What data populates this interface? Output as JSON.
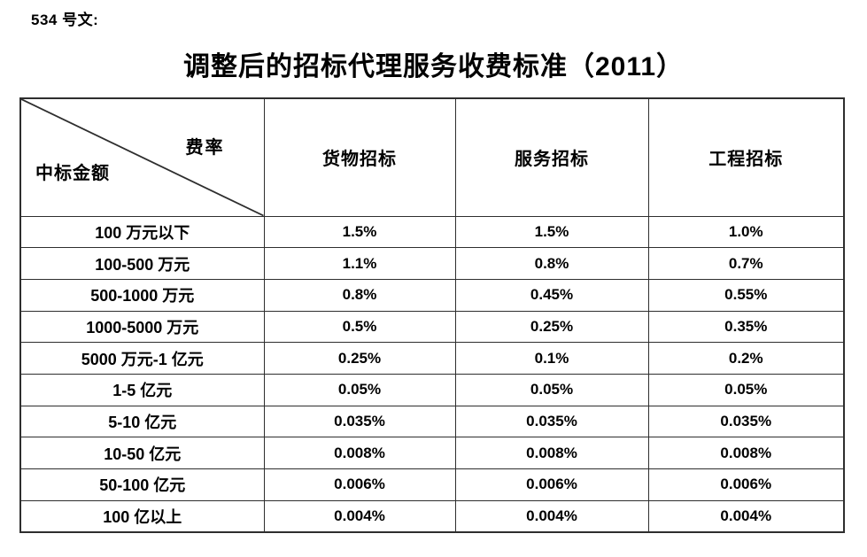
{
  "page": {
    "doc_label": "534 号文:",
    "title": "调整后的招标代理服务收费标准（2011）"
  },
  "table": {
    "corner": {
      "top_right": "费率",
      "bottom_left": "中标金额"
    },
    "columns": [
      "货物招标",
      "服务招标",
      "工程招标"
    ],
    "rows": [
      {
        "amount": "100 万元以下",
        "values": [
          "1.5%",
          "1.5%",
          "1.0%"
        ]
      },
      {
        "amount": "100-500 万元",
        "values": [
          "1.1%",
          "0.8%",
          "0.7%"
        ]
      },
      {
        "amount": "500-1000 万元",
        "values": [
          "0.8%",
          "0.45%",
          "0.55%"
        ]
      },
      {
        "amount": "1000-5000 万元",
        "values": [
          "0.5%",
          "0.25%",
          "0.35%"
        ]
      },
      {
        "amount": "5000 万元-1 亿元",
        "values": [
          "0.25%",
          "0.1%",
          "0.2%"
        ]
      },
      {
        "amount": "1-5 亿元",
        "values": [
          "0.05%",
          "0.05%",
          "0.05%"
        ]
      },
      {
        "amount": "5-10 亿元",
        "values": [
          "0.035%",
          "0.035%",
          "0.035%"
        ]
      },
      {
        "amount": "10-50 亿元",
        "values": [
          "0.008%",
          "0.008%",
          "0.008%"
        ]
      },
      {
        "amount": "50-100 亿元",
        "values": [
          "0.006%",
          "0.006%",
          "0.006%"
        ]
      },
      {
        "amount": "100 亿以上",
        "values": [
          "0.004%",
          "0.004%",
          "0.004%"
        ]
      }
    ],
    "colors": {
      "border": "#2e2e2e",
      "text": "#000000",
      "background": "#ffffff"
    }
  }
}
